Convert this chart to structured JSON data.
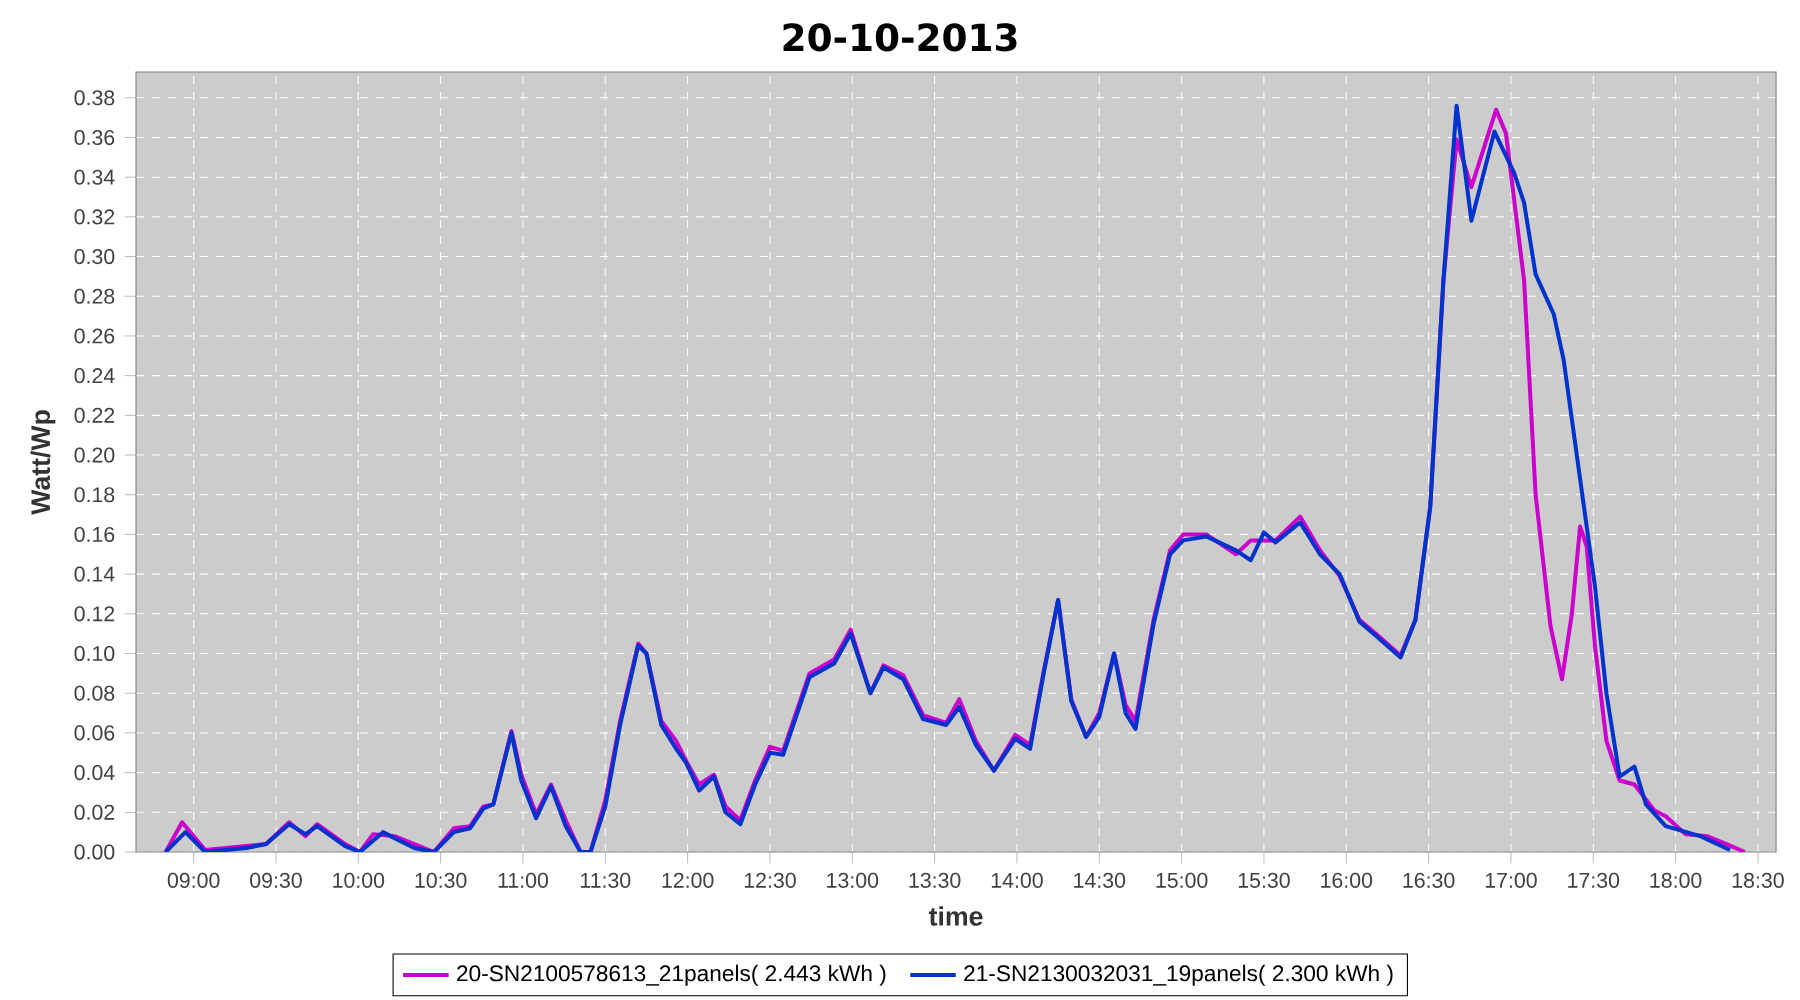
{
  "chart_data": {
    "type": "line",
    "title": "20-10-2013",
    "xlabel": "time",
    "ylabel": "Watt/Wp",
    "xlim": [
      8.65,
      18.61
    ],
    "ylim": [
      0,
      0.393
    ],
    "xticks": [
      {
        "value": 9,
        "label": "09:00"
      },
      {
        "value": 9.5,
        "label": "09:30"
      },
      {
        "value": 10,
        "label": "10:00"
      },
      {
        "value": 10.5,
        "label": "10:30"
      },
      {
        "value": 11,
        "label": "11:00"
      },
      {
        "value": 11.5,
        "label": "11:30"
      },
      {
        "value": 12,
        "label": "12:00"
      },
      {
        "value": 12.5,
        "label": "12:30"
      },
      {
        "value": 13,
        "label": "13:00"
      },
      {
        "value": 13.5,
        "label": "13:30"
      },
      {
        "value": 14,
        "label": "14:00"
      },
      {
        "value": 14.5,
        "label": "14:30"
      },
      {
        "value": 15,
        "label": "15:00"
      },
      {
        "value": 15.5,
        "label": "15:30"
      },
      {
        "value": 16,
        "label": "16:00"
      },
      {
        "value": 16.5,
        "label": "16:30"
      },
      {
        "value": 17,
        "label": "17:00"
      },
      {
        "value": 17.5,
        "label": "17:30"
      },
      {
        "value": 18,
        "label": "18:00"
      },
      {
        "value": 18.5,
        "label": "18:30"
      }
    ],
    "yticks": [
      {
        "value": 0,
        "label": "0.00"
      },
      {
        "value": 0.02,
        "label": "0.02"
      },
      {
        "value": 0.04,
        "label": "0.04"
      },
      {
        "value": 0.06,
        "label": "0.06"
      },
      {
        "value": 0.08,
        "label": "0.08"
      },
      {
        "value": 0.1,
        "label": "0.10"
      },
      {
        "value": 0.12,
        "label": "0.12"
      },
      {
        "value": 0.14,
        "label": "0.14"
      },
      {
        "value": 0.16,
        "label": "0.16"
      },
      {
        "value": 0.18,
        "label": "0.18"
      },
      {
        "value": 0.2,
        "label": "0.20"
      },
      {
        "value": 0.22,
        "label": "0.22"
      },
      {
        "value": 0.24,
        "label": "0.24"
      },
      {
        "value": 0.26,
        "label": "0.26"
      },
      {
        "value": 0.28,
        "label": "0.28"
      },
      {
        "value": 0.3,
        "label": "0.30"
      },
      {
        "value": 0.32,
        "label": "0.32"
      },
      {
        "value": 0.34,
        "label": "0.34"
      },
      {
        "value": 0.36,
        "label": "0.36"
      },
      {
        "value": 0.38,
        "label": "0.38"
      }
    ],
    "grid": true,
    "legend": "bottom",
    "marker": "none",
    "line_style": "solid",
    "series": [
      {
        "name": "20-SN2100578613_21panels( 2.443 kWh )",
        "color": "#cc00cc",
        "x": [
          8.83,
          8.93,
          9.07,
          9.32,
          9.44,
          9.58,
          9.68,
          9.75,
          9.92,
          10.01,
          10.09,
          10.22,
          10.34,
          10.46,
          10.58,
          10.68,
          10.76,
          10.82,
          10.93,
          10.99,
          11.08,
          11.17,
          11.26,
          11.35,
          11.41,
          11.5,
          11.59,
          11.7,
          11.75,
          11.84,
          11.93,
          11.99,
          12.07,
          12.16,
          12.23,
          12.32,
          12.41,
          12.5,
          12.58,
          12.74,
          12.89,
          12.99,
          13.11,
          13.19,
          13.31,
          13.43,
          13.57,
          13.65,
          13.75,
          13.86,
          13.99,
          14.08,
          14.16,
          14.25,
          14.33,
          14.42,
          14.5,
          14.59,
          14.66,
          14.72,
          14.83,
          14.93,
          15.01,
          15.15,
          15.33,
          15.42,
          15.57,
          15.72,
          15.84,
          15.96,
          16.08,
          16.18,
          16.33,
          16.42,
          16.51,
          16.59,
          16.67,
          16.76,
          16.91,
          16.97,
          17.08,
          17.15,
          17.24,
          17.31,
          17.37,
          17.42,
          17.46,
          17.51,
          17.58,
          17.66,
          17.75,
          17.87,
          17.94,
          18.06,
          18.19,
          18.31,
          18.42
        ],
        "values": [
          0,
          0.015,
          0.001,
          0.003,
          0.004,
          0.015,
          0.008,
          0.014,
          0.004,
          0,
          0.009,
          0.008,
          0.004,
          0,
          0.012,
          0.013,
          0.023,
          0.024,
          0.061,
          0.039,
          0.019,
          0.034,
          0.016,
          0,
          0,
          0.026,
          0.066,
          0.105,
          0.1,
          0.066,
          0.056,
          0.046,
          0.034,
          0.039,
          0.023,
          0.016,
          0.036,
          0.053,
          0.051,
          0.09,
          0.097,
          0.112,
          0.08,
          0.094,
          0.089,
          0.069,
          0.065,
          0.077,
          0.056,
          0.041,
          0.059,
          0.054,
          0.09,
          0.127,
          0.077,
          0.058,
          0.07,
          0.1,
          0.074,
          0.066,
          0.117,
          0.152,
          0.16,
          0.16,
          0.15,
          0.157,
          0.157,
          0.169,
          0.152,
          0.139,
          0.117,
          0.11,
          0.099,
          0.117,
          0.174,
          0.288,
          0.359,
          0.335,
          0.374,
          0.362,
          0.288,
          0.18,
          0.114,
          0.087,
          0.12,
          0.164,
          0.154,
          0.104,
          0.056,
          0.036,
          0.034,
          0.021,
          0.018,
          0.009,
          0.008,
          0.004,
          0
        ]
      },
      {
        "name": "21-SN2130032031_19panels( 2.300 kWh )",
        "color": "#0033cc",
        "x": [
          8.83,
          8.95,
          9.07,
          9.32,
          9.44,
          9.58,
          9.68,
          9.75,
          9.92,
          10.01,
          10.15,
          10.22,
          10.34,
          10.46,
          10.58,
          10.68,
          10.76,
          10.82,
          10.93,
          10.99,
          11.08,
          11.17,
          11.26,
          11.35,
          11.41,
          11.5,
          11.59,
          11.7,
          11.75,
          11.84,
          11.93,
          11.99,
          12.07,
          12.16,
          12.23,
          12.32,
          12.41,
          12.5,
          12.58,
          12.74,
          12.89,
          12.99,
          13.11,
          13.19,
          13.31,
          13.43,
          13.57,
          13.65,
          13.75,
          13.86,
          13.99,
          14.08,
          14.16,
          14.25,
          14.33,
          14.42,
          14.5,
          14.59,
          14.66,
          14.72,
          14.83,
          14.93,
          15.01,
          15.15,
          15.33,
          15.42,
          15.5,
          15.57,
          15.72,
          15.84,
          15.96,
          16.08,
          16.18,
          16.33,
          16.42,
          16.51,
          16.59,
          16.67,
          16.76,
          16.9,
          17.02,
          17.08,
          17.15,
          17.26,
          17.32,
          17.42,
          17.51,
          17.58,
          17.66,
          17.75,
          17.82,
          17.94,
          18.15,
          18.33
        ],
        "values": [
          0,
          0.01,
          0,
          0.002,
          0.004,
          0.014,
          0.009,
          0.013,
          0.003,
          0,
          0.01,
          0.007,
          0.002,
          0,
          0.01,
          0.012,
          0.022,
          0.024,
          0.06,
          0.036,
          0.017,
          0.033,
          0.013,
          0,
          0,
          0.023,
          0.064,
          0.104,
          0.1,
          0.064,
          0.052,
          0.045,
          0.031,
          0.038,
          0.02,
          0.014,
          0.034,
          0.05,
          0.049,
          0.088,
          0.095,
          0.11,
          0.08,
          0.093,
          0.087,
          0.067,
          0.064,
          0.073,
          0.054,
          0.041,
          0.057,
          0.052,
          0.089,
          0.127,
          0.076,
          0.058,
          0.068,
          0.1,
          0.07,
          0.062,
          0.115,
          0.15,
          0.157,
          0.159,
          0.152,
          0.147,
          0.161,
          0.156,
          0.166,
          0.15,
          0.14,
          0.116,
          0.109,
          0.098,
          0.117,
          0.174,
          0.288,
          0.376,
          0.318,
          0.363,
          0.342,
          0.327,
          0.291,
          0.271,
          0.248,
          0.188,
          0.134,
          0.08,
          0.038,
          0.043,
          0.024,
          0.013,
          0.008,
          0.001
        ]
      }
    ]
  }
}
